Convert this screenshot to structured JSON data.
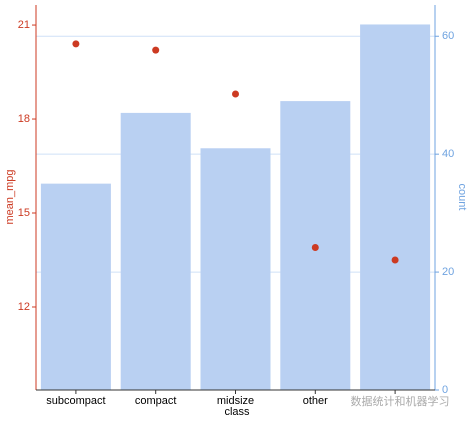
{
  "chart_data": {
    "type": "bar_point",
    "categories": [
      "subcompact",
      "compact",
      "midsize",
      "other",
      null
    ],
    "x_label": "class",
    "y_label": "mean_mpg",
    "y2_label": "count",
    "series": [
      {
        "name": "count",
        "color": "#b9d0f2",
        "axis": "y2",
        "values": [
          35,
          47,
          41,
          49,
          62
        ]
      },
      {
        "name": "mean_mpg",
        "color": "#cc3a22",
        "values": [
          20.4,
          20.2,
          18.8,
          13.9,
          13.5
        ]
      }
    ],
    "ylim": [
      9.35,
      21.64
    ],
    "yticks": [
      12,
      15,
      18,
      21
    ],
    "y2lim": [
      0,
      65.3
    ],
    "y2ticks": [
      0,
      20,
      40,
      60
    ],
    "grid": true,
    "watermark": "数据统计和机器学习"
  }
}
